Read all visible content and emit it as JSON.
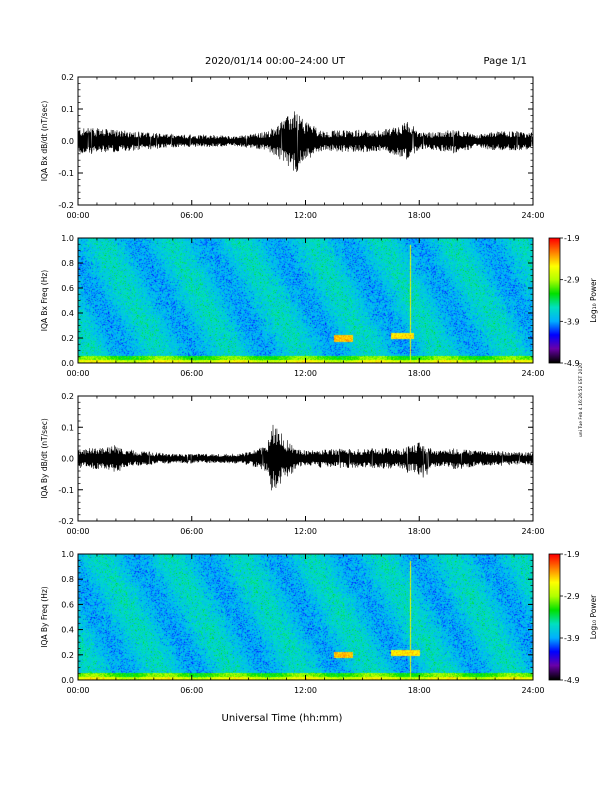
{
  "header": {
    "title": "2020/01/14  00:00–24:00 UT",
    "page": "Page 1/1"
  },
  "footer": {
    "xlabel": "Universal Time (hh:mm)",
    "side_note": "uni Tue Feb 4 16:26:52 EST 2020"
  },
  "chart_data": [
    {
      "type": "line",
      "title": "",
      "xlabel": "",
      "ylabel": "IQA Bx dB/dt (nT/sec)",
      "x_ticks": [
        "00:00",
        "06:00",
        "12:00",
        "18:00",
        "24:00"
      ],
      "y_ticks": [
        "-0.2",
        "-0.1",
        "0.0",
        "0.1",
        "0.2"
      ],
      "xlim": [
        0,
        24
      ],
      "ylim": [
        -0.2,
        0.2
      ],
      "series": [
        {
          "x": [
            0,
            1,
            2,
            3,
            4,
            5,
            6,
            7,
            8,
            9,
            10,
            11,
            11.5,
            12,
            13,
            14,
            15,
            16,
            17,
            17.5,
            18,
            19,
            20,
            21,
            22,
            23,
            24
          ],
          "y_hi": [
            0.04,
            0.04,
            0.035,
            0.03,
            0.025,
            0.02,
            0.02,
            0.02,
            0.015,
            0.02,
            0.03,
            0.07,
            0.1,
            0.06,
            0.03,
            0.035,
            0.035,
            0.035,
            0.045,
            0.025,
            0.025,
            0.03,
            0.035,
            0.02,
            0.03,
            0.03,
            0.025
          ],
          "y_lo": [
            -0.04,
            -0.04,
            -0.035,
            -0.03,
            -0.025,
            -0.02,
            -0.02,
            -0.02,
            -0.015,
            -0.02,
            -0.03,
            -0.08,
            -0.1,
            -0.06,
            -0.03,
            -0.035,
            -0.035,
            -0.03,
            -0.06,
            -0.1,
            -0.025,
            -0.03,
            -0.04,
            -0.02,
            -0.03,
            -0.03,
            -0.025
          ]
        }
      ]
    },
    {
      "type": "heatmap",
      "title": "",
      "xlabel": "",
      "ylabel": "IQA Bx Freq (Hz)",
      "x_ticks": [
        "00:00",
        "06:00",
        "12:00",
        "18:00",
        "24:00"
      ],
      "y_ticks": [
        "0.0",
        "0.2",
        "0.4",
        "0.6",
        "0.8",
        "1.0"
      ],
      "xlim": [
        0,
        24
      ],
      "ylim": [
        0,
        1.0
      ],
      "colorbar": {
        "label": "Log₁₀ Power",
        "ticks": [
          "-1.9",
          "-2.9",
          "-3.9",
          "-4.9"
        ],
        "range": [
          -4.9,
          -1.9
        ]
      },
      "features": [
        {
          "t_start": 13.5,
          "t_end": 14.5,
          "f": 0.2,
          "level": -2.4
        },
        {
          "t_start": 16.5,
          "t_end": 17.7,
          "f": 0.22,
          "level": -2.5
        },
        {
          "t": 17.5,
          "f_start": 0.0,
          "f_end": 0.95,
          "level": -2.6
        }
      ]
    },
    {
      "type": "line",
      "title": "",
      "xlabel": "",
      "ylabel": "IQA By dB/dt (nT/sec)",
      "x_ticks": [
        "00:00",
        "06:00",
        "12:00",
        "18:00",
        "24:00"
      ],
      "y_ticks": [
        "-0.2",
        "-0.1",
        "0.0",
        "0.1",
        "0.2"
      ],
      "xlim": [
        0,
        24
      ],
      "ylim": [
        -0.2,
        0.2
      ],
      "series": [
        {
          "x": [
            0,
            1,
            2,
            3,
            4,
            5,
            6,
            7,
            8,
            9,
            10,
            10.2,
            11,
            11.5,
            12,
            13,
            14,
            15,
            16,
            17,
            18,
            19,
            20,
            21,
            22,
            23,
            24
          ],
          "y_hi": [
            0.03,
            0.035,
            0.05,
            0.025,
            0.02,
            0.015,
            0.015,
            0.015,
            0.015,
            0.02,
            0.04,
            0.12,
            0.07,
            0.035,
            0.025,
            0.03,
            0.03,
            0.03,
            0.035,
            0.03,
            0.035,
            0.025,
            0.035,
            0.025,
            0.025,
            0.02,
            0.02
          ],
          "y_lo": [
            -0.03,
            -0.035,
            -0.04,
            -0.025,
            -0.02,
            -0.015,
            -0.015,
            -0.015,
            -0.015,
            -0.02,
            -0.05,
            -0.11,
            -0.06,
            -0.035,
            -0.025,
            -0.03,
            -0.03,
            -0.03,
            -0.035,
            -0.03,
            -0.07,
            -0.025,
            -0.035,
            -0.025,
            -0.025,
            -0.02,
            -0.02
          ]
        }
      ]
    },
    {
      "type": "heatmap",
      "title": "",
      "xlabel": "",
      "ylabel": "IQA By Freq (Hz)",
      "x_ticks": [
        "00:00",
        "06:00",
        "12:00",
        "18:00",
        "24:00"
      ],
      "y_ticks": [
        "0.0",
        "0.2",
        "0.4",
        "0.6",
        "0.8",
        "1.0"
      ],
      "xlim": [
        0,
        24
      ],
      "ylim": [
        0,
        1.0
      ],
      "colorbar": {
        "label": "Log₁₀ Power",
        "ticks": [
          "-1.9",
          "-2.9",
          "-3.9",
          "-4.9"
        ],
        "range": [
          -4.9,
          -1.9
        ]
      },
      "features": [
        {
          "t_start": 13.5,
          "t_end": 14.5,
          "f": 0.2,
          "level": -2.4
        },
        {
          "t_start": 16.5,
          "t_end": 18.0,
          "f": 0.22,
          "level": -2.5
        },
        {
          "t": 17.5,
          "f_start": 0.0,
          "f_end": 0.95,
          "level": -2.6
        }
      ]
    }
  ],
  "colors": {
    "trace": "#000000",
    "colormap": [
      "#000000",
      "#6a00a8",
      "#0000ff",
      "#00b0ff",
      "#00e0c0",
      "#00e000",
      "#b0ff00",
      "#ffff00",
      "#ff8000",
      "#ff0000"
    ]
  }
}
